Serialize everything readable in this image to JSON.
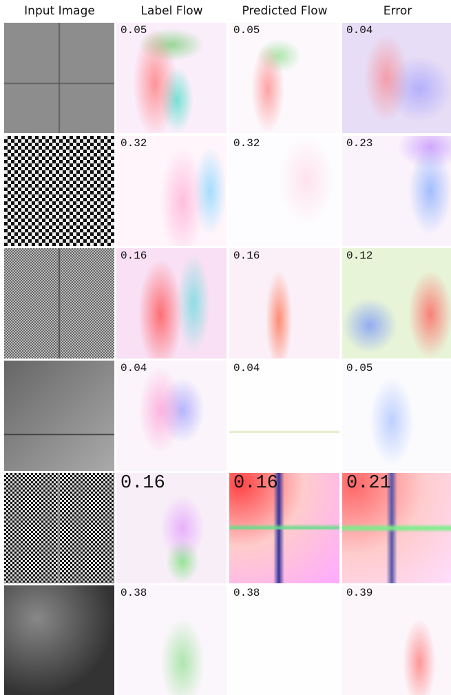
{
  "header": {
    "columns": [
      "Input Image",
      "Label Flow",
      "Predicted Flow",
      "Error"
    ]
  },
  "rows": [
    {
      "label_flow": "0.05",
      "predicted_flow": "0.05",
      "error": "0.04"
    },
    {
      "label_flow": "0.32",
      "predicted_flow": "0.32",
      "error": "0.23"
    },
    {
      "label_flow": "0.16",
      "predicted_flow": "0.16",
      "error": "0.12"
    },
    {
      "label_flow": "0.04",
      "predicted_flow": "0.04",
      "error": "0.05"
    },
    {
      "label_flow": "0.16",
      "predicted_flow": "0.16",
      "error": "0.21"
    },
    {
      "label_flow": "0.38",
      "predicted_flow": "0.38",
      "error": "0.39"
    }
  ]
}
